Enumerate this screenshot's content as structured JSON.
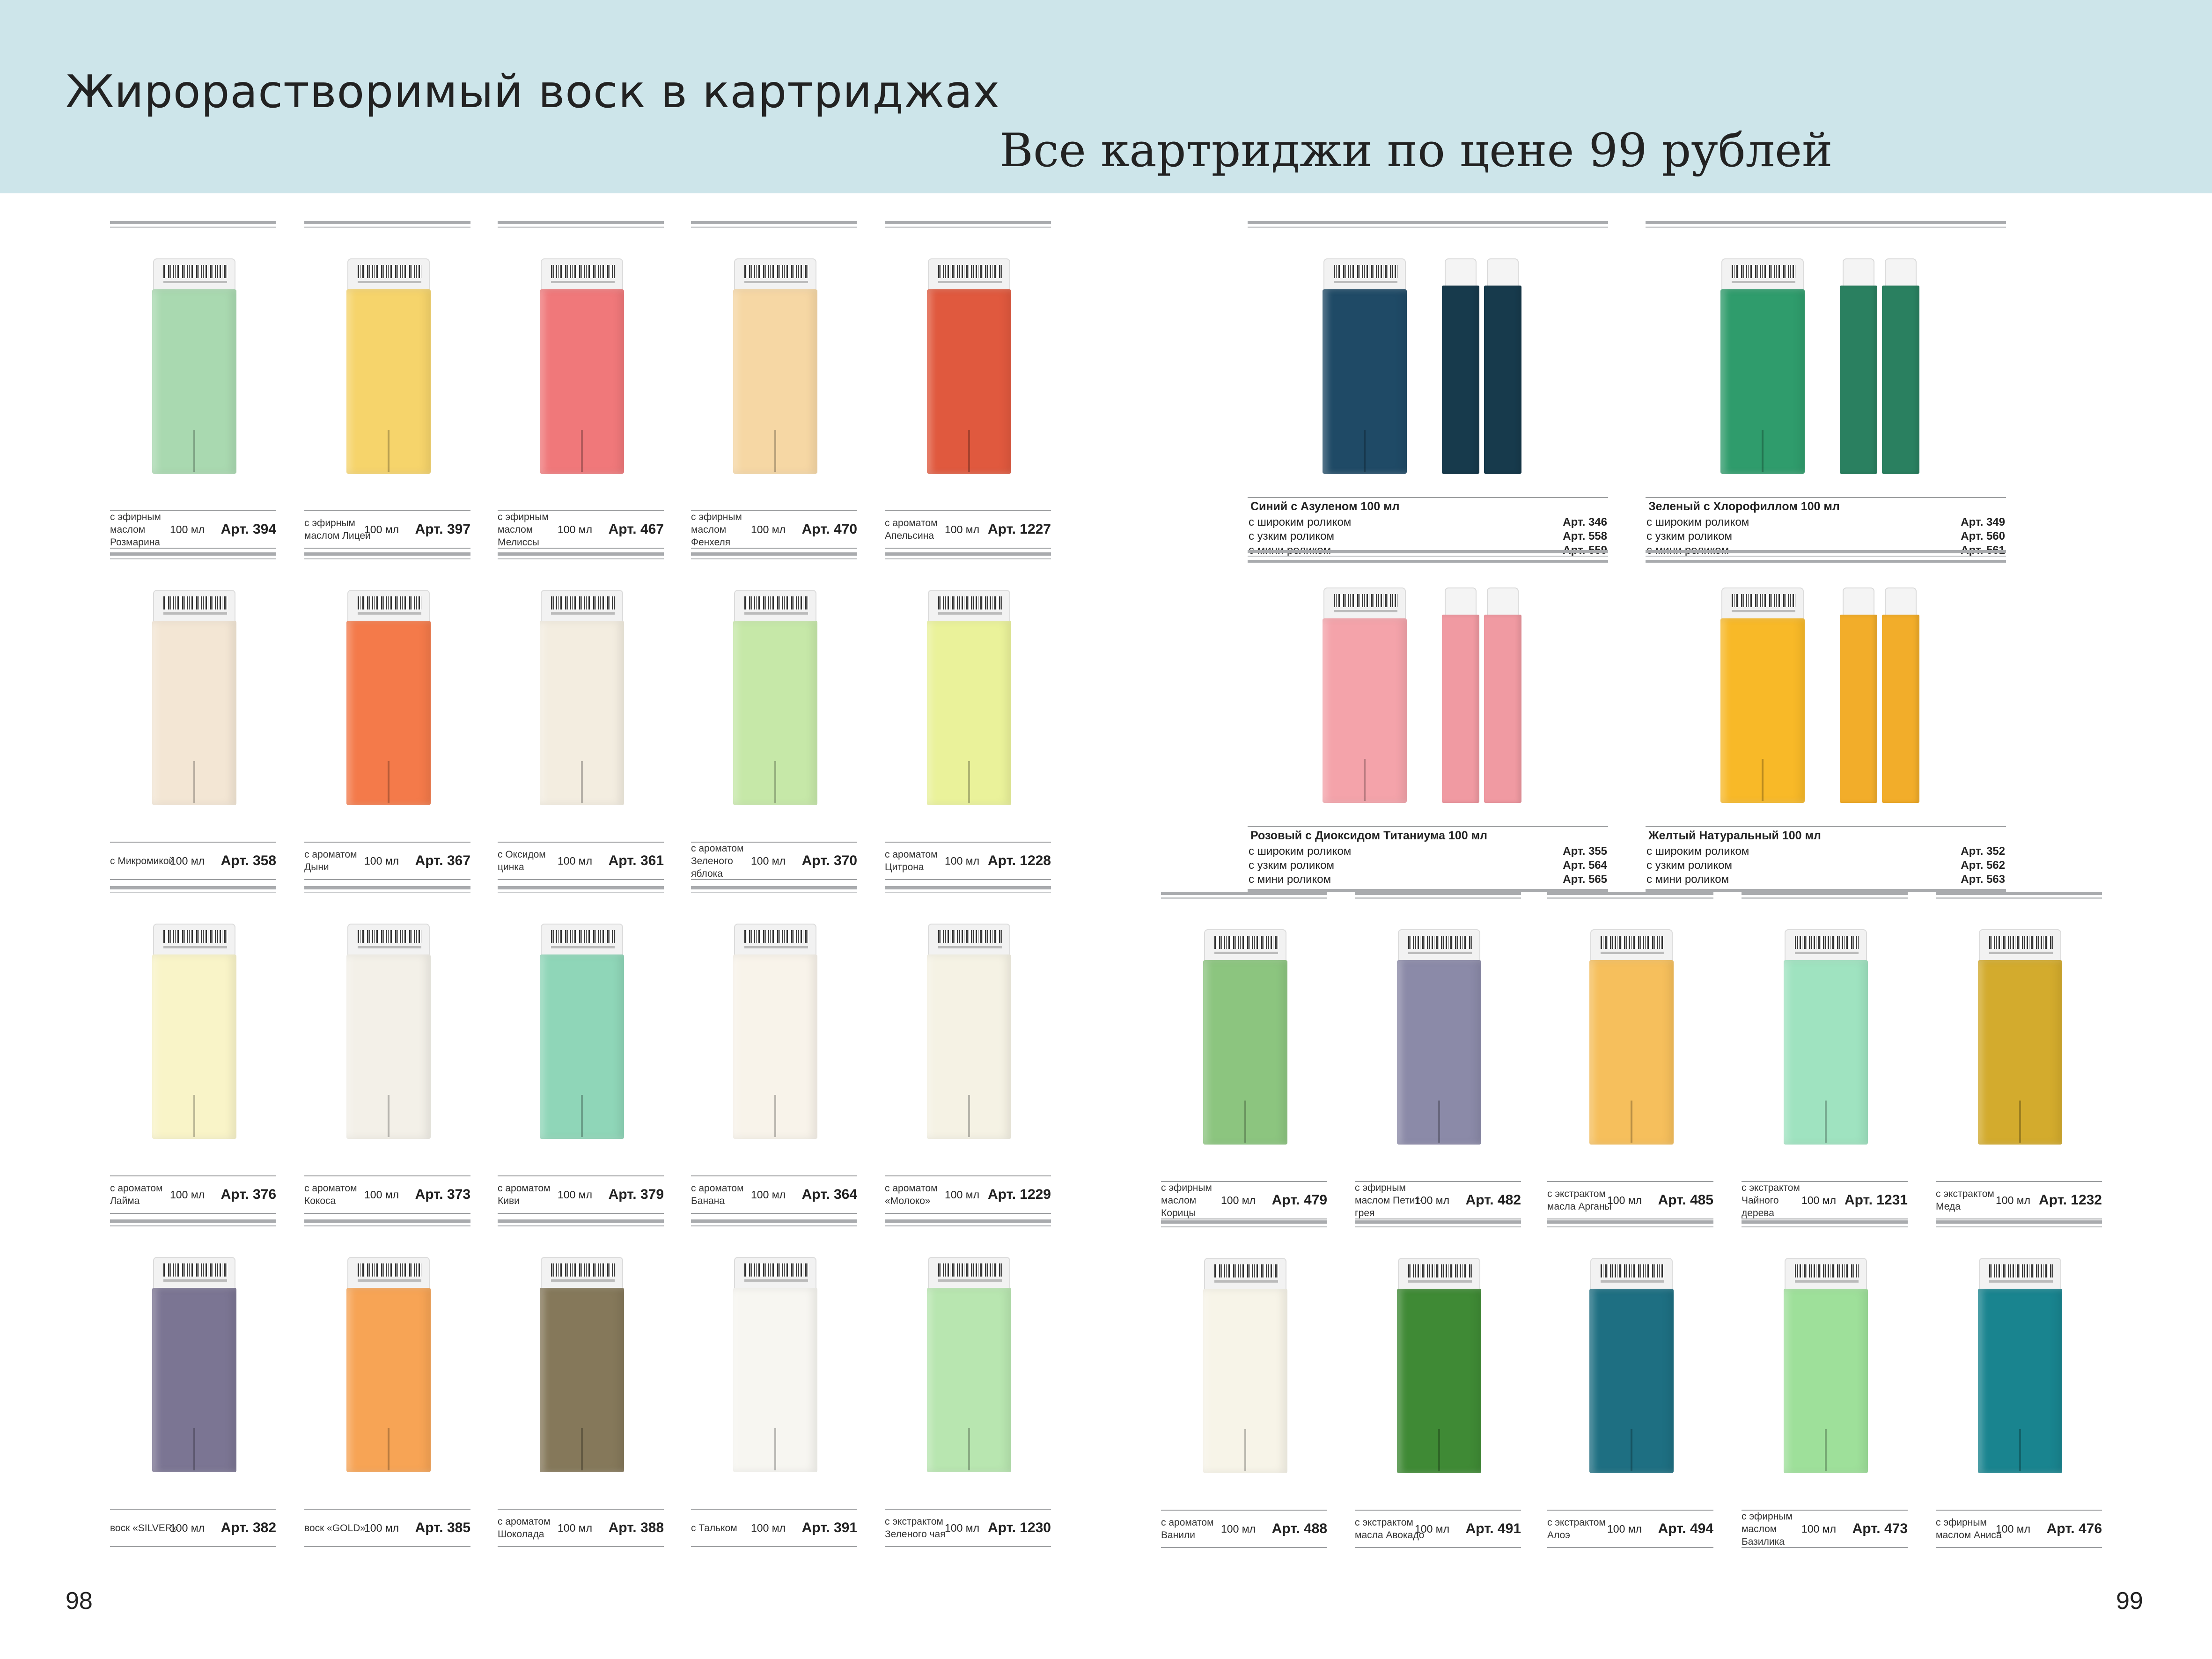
{
  "header": {
    "title": "Жирорастворимый воск в картриджах",
    "subtitle": "Все картриджи по цене 99 рублей"
  },
  "pages": {
    "left": "98",
    "right": "99"
  },
  "left_products": [
    {
      "desc": "с эфирным маслом Розмарина",
      "vol": "100 мл",
      "art": "Арт. 394",
      "color": "#a9d9b0"
    },
    {
      "desc": "с эфирным маслом Лицеи",
      "vol": "100 мл",
      "art": "Арт. 397",
      "color": "#f6d46b"
    },
    {
      "desc": "с эфирным маслом Мелиссы",
      "vol": "100 мл",
      "art": "Арт. 467",
      "color": "#f0787a"
    },
    {
      "desc": "с эфирным маслом Фенхеля",
      "vol": "100 мл",
      "art": "Арт. 470",
      "color": "#f6d7a4"
    },
    {
      "desc": "с ароматом Апельсина",
      "vol": "100 мл",
      "art": "Арт. 1227",
      "color": "#e0593e"
    },
    {
      "desc": "с Микромикой",
      "vol": "100 мл",
      "art": "Арт. 358",
      "color": "#f3e6d4"
    },
    {
      "desc": "с ароматом Дыни",
      "vol": "100 мл",
      "art": "Арт. 367",
      "color": "#f47a4a"
    },
    {
      "desc": "с Оксидом цинка",
      "vol": "100 мл",
      "art": "Арт. 361",
      "color": "#f3ede0"
    },
    {
      "desc": "с ароматом Зеленого яблока",
      "vol": "100 мл",
      "art": "Арт. 370",
      "color": "#c6e8a8"
    },
    {
      "desc": "с ароматом Цитрона",
      "vol": "100 мл",
      "art": "Арт. 1228",
      "color": "#eaf29a"
    },
    {
      "desc": "с ароматом Лайма",
      "vol": "100 мл",
      "art": "Арт. 376",
      "color": "#f9f4c8"
    },
    {
      "desc": "с ароматом Кокоса",
      "vol": "100 мл",
      "art": "Арт. 373",
      "color": "#f3f0e8"
    },
    {
      "desc": "с ароматом Киви",
      "vol": "100 мл",
      "art": "Арт. 379",
      "color": "#8fd6b8"
    },
    {
      "desc": "с ароматом Банана",
      "vol": "100 мл",
      "art": "Арт. 364",
      "color": "#f8f3ea"
    },
    {
      "desc": "с ароматом «Молоко»",
      "vol": "100 мл",
      "art": "Арт. 1229",
      "color": "#f5f2e4"
    },
    {
      "desc": "воск «SILVER»",
      "vol": "100 мл",
      "art": "Арт. 382",
      "color": "#7b7593"
    },
    {
      "desc": "воск «GOLD»",
      "vol": "100 мл",
      "art": "Арт. 385",
      "color": "#f7a455"
    },
    {
      "desc": "с ароматом Шоколада",
      "vol": "100 мл",
      "art": "Арт. 388",
      "color": "#85785a"
    },
    {
      "desc": "с Тальком",
      "vol": "100 мл",
      "art": "Арт. 391",
      "color": "#f7f6f1"
    },
    {
      "desc": "с экстрактом Зеленого чая",
      "vol": "100 мл",
      "art": "Арт. 1230",
      "color": "#b8e6b0"
    }
  ],
  "big_products": [
    {
      "name": "Синий с Азуленом 100 мл",
      "color": "#1f4a66",
      "slim_color": "#173a4c",
      "rows": [
        {
          "label": "с широким роликом",
          "art": "Арт. 346"
        },
        {
          "label": "с узким роликом",
          "art": "Арт. 558"
        },
        {
          "label": "с мини роликом",
          "art": "Арт. 559"
        }
      ]
    },
    {
      "name": "Зеленый с Хлорофиллом 100 мл",
      "color": "#2f9c6c",
      "slim_color": "#2a8060",
      "rows": [
        {
          "label": "с широким роликом",
          "art": "Арт. 349"
        },
        {
          "label": "с узким роликом",
          "art": "Арт. 560"
        },
        {
          "label": "с мини роликом",
          "art": "Арт. 561"
        }
      ]
    },
    {
      "name": "Розовый с Диоксидом Титаниума 100 мл",
      "color": "#f4a3aa",
      "slim_color": "#f09aa2",
      "rows": [
        {
          "label": "с широким роликом",
          "art": "Арт. 355"
        },
        {
          "label": "с узким роликом",
          "art": "Арт. 564"
        },
        {
          "label": "с мини роликом",
          "art": "Арт. 565"
        }
      ]
    },
    {
      "name": "Желтый Натуральный 100 мл",
      "color": "#f8b928",
      "slim_color": "#f2ad2a",
      "rows": [
        {
          "label": "с широким роликом",
          "art": "Арт. 352"
        },
        {
          "label": "с узким роликом",
          "art": "Арт. 562"
        },
        {
          "label": "с мини роликом",
          "art": "Арт. 563"
        }
      ]
    }
  ],
  "right_products": [
    {
      "desc": "с эфирным маслом Корицы",
      "vol": "100 мл",
      "art": "Арт. 479",
      "color": "#8cc57f"
    },
    {
      "desc": "с эфирным маслом Петит-грея",
      "vol": "100 мл",
      "art": "Арт. 482",
      "color": "#8b8aa8"
    },
    {
      "desc": "с экстрактом масла Арганы",
      "vol": "100 мл",
      "art": "Арт. 485",
      "color": "#f6bf5c"
    },
    {
      "desc": "с экстрактом Чайного дерева",
      "vol": "100 мл",
      "art": "Арт. 1231",
      "color": "#9fe3c0"
    },
    {
      "desc": "с экстрактом Меда",
      "vol": "100 мл",
      "art": "Арт. 1232",
      "color": "#d3ab2d"
    },
    {
      "desc": "с ароматом Ванили",
      "vol": "100 мл",
      "art": "Арт. 488",
      "color": "#f7f4e8"
    },
    {
      "desc": "с экстрактом масла Авокадо",
      "vol": "100 мл",
      "art": "Арт. 491",
      "color": "#3f8a35"
    },
    {
      "desc": "с экстрактом Алоэ",
      "vol": "100 мл",
      "art": "Арт. 494",
      "color": "#1e6f82"
    },
    {
      "desc": "с эфирным маслом Базилика",
      "vol": "100 мл",
      "art": "Арт. 473",
      "color": "#9ee09a"
    },
    {
      "desc": "с эфирным маслом Аниса",
      "vol": "100 мл",
      "art": "Арт. 476",
      "color": "#19848f"
    }
  ]
}
